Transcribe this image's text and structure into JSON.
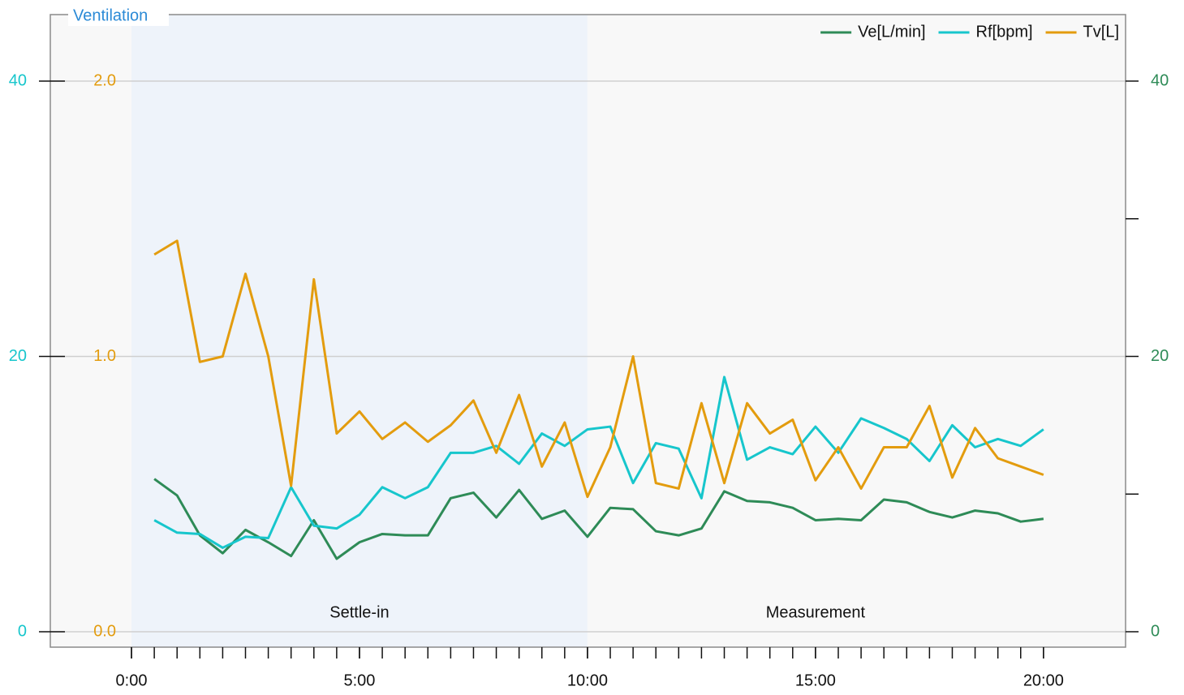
{
  "chart_data": {
    "type": "line",
    "title": "Ventilation",
    "title_color": "#2b8ad6",
    "x": [
      0.5,
      1.0,
      1.5,
      2.0,
      2.5,
      3.0,
      3.5,
      4.0,
      4.5,
      5.0,
      5.5,
      6.0,
      6.5,
      7.0,
      7.5,
      8.0,
      8.5,
      9.0,
      9.5,
      10.0,
      10.5,
      11.0,
      11.5,
      12.0,
      12.5,
      13.0,
      13.5,
      14.0,
      14.5,
      15.0,
      15.5,
      16.0,
      16.5,
      17.0,
      17.5,
      18.0,
      18.5,
      19.0,
      19.5,
      20.0
    ],
    "xlim": [
      -1.78,
      21.8
    ],
    "xticks": [
      {
        "value": 0,
        "label": "0:00"
      },
      {
        "value": 5,
        "label": "5:00"
      },
      {
        "value": 10,
        "label": "10:00"
      },
      {
        "value": 15,
        "label": "15:00"
      },
      {
        "value": 20,
        "label": "20:00"
      }
    ],
    "xminor_ticks": [
      0,
      0.5,
      1,
      1.5,
      2,
      2.5,
      3,
      3.5,
      4,
      4.5,
      5,
      5.5,
      6,
      6.5,
      7,
      7.5,
      8,
      8.5,
      9,
      9.5,
      10,
      10.5,
      11,
      11.5,
      12,
      12.5,
      13,
      13.5,
      14,
      14.5,
      15,
      15.5,
      16,
      16.5,
      17,
      17.5,
      18,
      18.5,
      19,
      19.5,
      20
    ],
    "ylim": [
      -1.12,
      44.83
    ],
    "yticks": [
      0,
      20,
      40
    ],
    "y_color": "#17c6cc",
    "y3lim": [
      -0.056,
      2.2415
    ],
    "y3ticks": [
      {
        "value": 0,
        "label": "0.0"
      },
      {
        "value": 1,
        "label": "1.0"
      },
      {
        "value": 2,
        "label": "2.0"
      }
    ],
    "y3_color": "#e39c0e",
    "y2lim": [
      -1.12,
      44.83
    ],
    "y2ticks": [
      0,
      20,
      40
    ],
    "y2minor_ticks": [
      10,
      30
    ],
    "y2_color": "#2e8b57",
    "grid": true,
    "legend": "top-right",
    "regions": [
      {
        "label": "Settle-in",
        "start": 0,
        "end": 10,
        "color": "#eef3fa"
      },
      {
        "label": "Measurement",
        "start": 10,
        "end": 20,
        "color": "#f8f8f8"
      }
    ],
    "series": [
      {
        "name": "Ve[L/min]",
        "color": "#2e8b57",
        "axis": "y2",
        "values": [
          11.1,
          9.9,
          7.0,
          5.7,
          7.4,
          6.5,
          5.5,
          8.1,
          5.3,
          6.5,
          7.1,
          7.0,
          7.0,
          9.7,
          10.1,
          8.3,
          10.3,
          8.2,
          8.8,
          6.9,
          9.0,
          8.9,
          7.3,
          7.0,
          7.5,
          10.2,
          9.5,
          9.4,
          9.0,
          8.1,
          8.2,
          8.1,
          9.6,
          9.4,
          8.7,
          8.3,
          8.8,
          8.6,
          8.0,
          8.2
        ]
      },
      {
        "name": "Rf[bpm]",
        "color": "#17c6cc",
        "axis": "y",
        "values": [
          8.1,
          7.2,
          7.1,
          6.1,
          6.9,
          6.8,
          10.5,
          7.7,
          7.5,
          8.5,
          10.5,
          9.7,
          10.5,
          13.0,
          13.0,
          13.5,
          12.2,
          14.4,
          13.5,
          14.7,
          14.9,
          10.8,
          13.7,
          13.3,
          9.7,
          18.5,
          12.5,
          13.4,
          12.9,
          14.9,
          13.0,
          15.5,
          14.8,
          14.0,
          12.4,
          15.0,
          13.4,
          14.0,
          13.5,
          14.7
        ]
      },
      {
        "name": "Tv[L]",
        "color": "#e39c0e",
        "axis": "y3",
        "values": [
          1.37,
          1.42,
          0.98,
          1.0,
          1.3,
          1.0,
          0.53,
          1.28,
          0.72,
          0.8,
          0.7,
          0.76,
          0.69,
          0.75,
          0.84,
          0.65,
          0.86,
          0.6,
          0.76,
          0.49,
          0.67,
          1.0,
          0.54,
          0.52,
          0.83,
          0.54,
          0.83,
          0.72,
          0.77,
          0.55,
          0.67,
          0.52,
          0.67,
          0.67,
          0.82,
          0.56,
          0.74,
          0.63,
          0.6,
          0.57
        ]
      }
    ]
  }
}
